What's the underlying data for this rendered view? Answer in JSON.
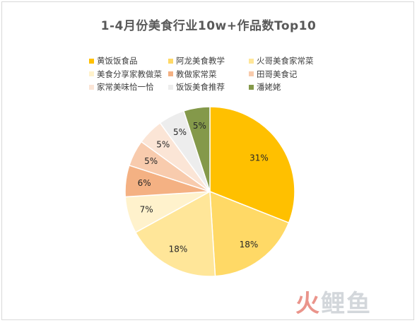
{
  "chart_data": {
    "type": "pie",
    "title": "1-4月份美食行业10w+作品数Top10",
    "legend_position": "top",
    "series": [
      {
        "name": "黄饭饭食品",
        "value": 31,
        "label": "31%",
        "color": "#FFC000"
      },
      {
        "name": "阿龙美食教学",
        "value": 18,
        "label": "18%",
        "color": "#FFD966"
      },
      {
        "name": "火哥美食家常菜",
        "value": 18,
        "label": "18%",
        "color": "#FFE699"
      },
      {
        "name": "美食分享家教做菜",
        "value": 7,
        "label": "7%",
        "color": "#FFF2CC"
      },
      {
        "name": "教做家常菜",
        "value": 6,
        "label": "6%",
        "color": "#F4B183"
      },
      {
        "name": "田哥美食记",
        "value": 5,
        "label": "5%",
        "color": "#F8CBAD"
      },
      {
        "name": "家常美味恰一恰",
        "value": 5,
        "label": "5%",
        "color": "#FBE5D6"
      },
      {
        "name": "饭饭美食推荐",
        "value": 5,
        "label": "5%",
        "color": "#EDEDED"
      },
      {
        "name": "潘姥姥",
        "value": 5,
        "label": "5%",
        "color": "#84994A"
      }
    ]
  },
  "watermark": {
    "first": "火",
    "rest": "鲤鱼"
  }
}
